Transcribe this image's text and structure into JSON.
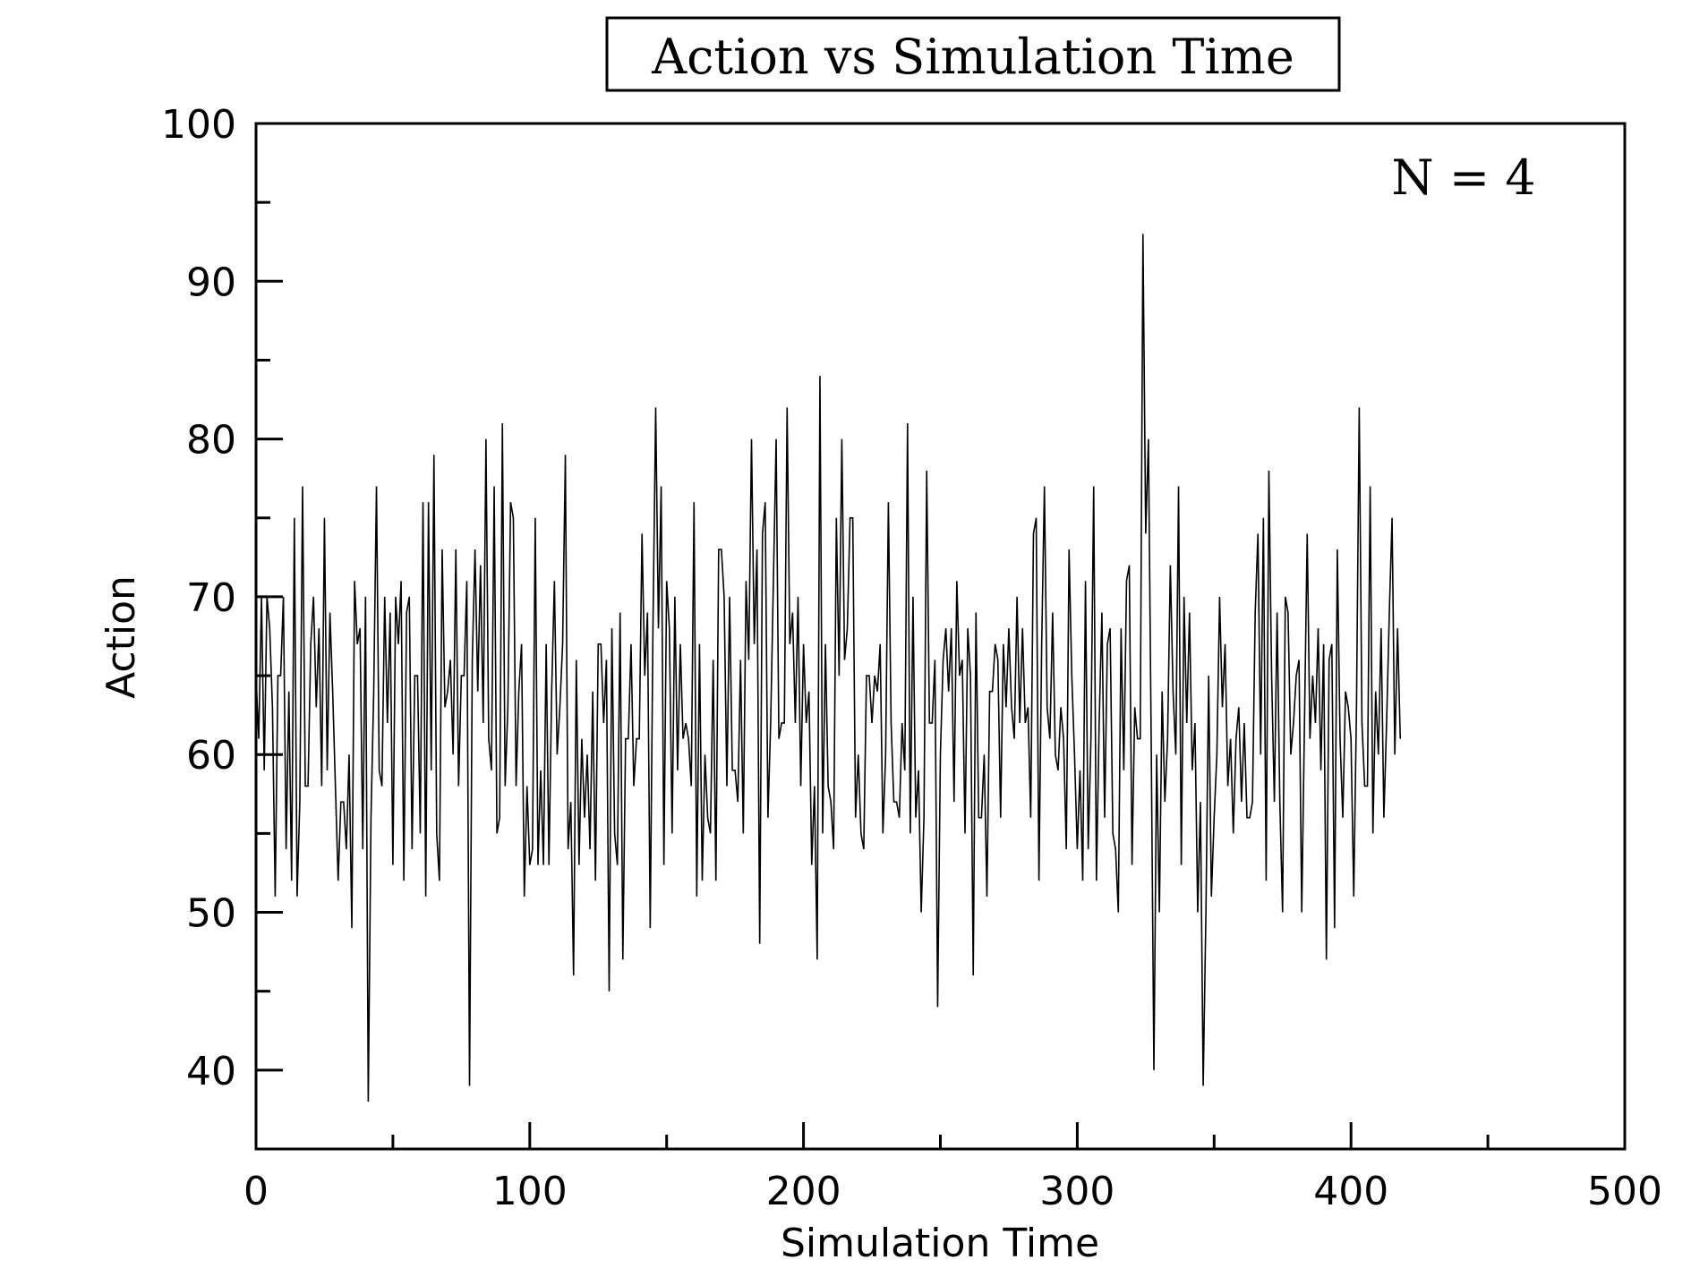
{
  "chart_data": {
    "type": "line",
    "title": "Action vs Simulation Time",
    "xlabel": "Simulation Time",
    "ylabel": "Action",
    "annotation": "N = 4",
    "xlim": [
      0,
      500
    ],
    "ylim": [
      35,
      100
    ],
    "xticks": [
      0,
      100,
      200,
      300,
      400,
      500
    ],
    "xtick_labels": [
      "0",
      "100",
      "200",
      "300",
      "400",
      "500"
    ],
    "yticks": [
      40,
      50,
      60,
      70,
      80,
      90,
      100
    ],
    "ytick_labels": [
      "40",
      "50",
      "60",
      "70",
      "80",
      "90",
      "100"
    ],
    "grid": false,
    "line_color": "#000000",
    "x_step": 1,
    "series": [
      {
        "values": [
          65,
          61,
          70,
          59,
          70,
          68,
          63,
          51,
          65,
          65,
          70,
          54,
          64,
          52,
          75,
          51,
          57,
          77,
          58,
          58,
          67,
          70,
          63,
          68,
          58,
          75,
          59,
          69,
          64,
          58,
          52,
          57,
          57,
          54,
          60,
          49,
          71,
          67,
          68,
          54,
          70,
          38,
          56,
          64,
          77,
          59,
          58,
          70,
          62,
          69,
          53,
          70,
          67,
          71,
          52,
          69,
          70,
          54,
          65,
          65,
          55,
          76,
          51,
          76,
          59,
          79,
          55,
          52,
          73,
          63,
          64,
          66,
          60,
          73,
          58,
          65,
          65,
          71,
          39,
          66,
          73,
          64,
          72,
          62,
          80,
          61,
          59,
          77,
          55,
          56,
          81,
          58,
          63,
          76,
          75,
          58,
          64,
          67,
          51,
          58,
          53,
          54,
          75,
          53,
          59,
          53,
          67,
          53,
          64,
          71,
          60,
          63,
          67,
          79,
          54,
          57,
          46,
          66,
          53,
          61,
          56,
          60,
          54,
          64,
          52,
          67,
          67,
          62,
          66,
          45,
          68,
          55,
          53,
          69,
          47,
          61,
          61,
          67,
          58,
          61,
          61,
          74,
          65,
          69,
          49,
          68,
          82,
          68,
          77,
          53,
          71,
          68,
          55,
          70,
          59,
          67,
          61,
          62,
          61,
          58,
          76,
          51,
          67,
          52,
          60,
          56,
          55,
          66,
          52,
          73,
          73,
          70,
          58,
          70,
          59,
          59,
          57,
          66,
          55,
          71,
          66,
          80,
          67,
          73,
          48,
          74,
          76,
          56,
          62,
          71,
          80,
          61,
          62,
          62,
          82,
          67,
          69,
          62,
          70,
          58,
          67,
          62,
          64,
          53,
          58,
          47,
          84,
          55,
          67,
          58,
          57,
          54,
          75,
          65,
          80,
          66,
          68,
          75,
          75,
          56,
          60,
          55,
          54,
          65,
          65,
          62,
          65,
          64,
          67,
          55,
          60,
          76,
          62,
          57,
          57,
          56,
          62,
          59,
          81,
          55,
          70,
          56,
          59,
          50,
          56,
          78,
          62,
          62,
          66,
          44,
          60,
          66,
          68,
          64,
          68,
          57,
          71,
          65,
          66,
          55,
          68,
          65,
          46,
          69,
          56,
          56,
          60,
          51,
          64,
          64,
          67,
          66,
          56,
          67,
          63,
          68,
          63,
          61,
          70,
          62,
          68,
          62,
          63,
          56,
          74,
          75,
          52,
          67,
          77,
          63,
          61,
          69,
          60,
          59,
          63,
          61,
          54,
          73,
          65,
          60,
          54,
          59,
          52,
          71,
          54,
          61,
          77,
          52,
          62,
          69,
          56,
          67,
          68,
          55,
          54,
          50,
          68,
          59,
          71,
          72,
          53,
          63,
          61,
          61,
          93,
          74,
          80,
          61,
          40,
          60,
          50,
          64,
          57,
          61,
          72,
          64,
          60,
          77,
          53,
          70,
          62,
          69,
          59,
          62,
          50,
          57,
          39,
          50,
          65,
          51,
          56,
          60,
          70,
          63,
          67,
          58,
          61,
          55,
          61,
          63,
          57,
          62,
          56,
          56,
          57,
          69,
          74,
          60,
          75,
          52,
          78,
          65,
          57,
          69,
          57,
          50,
          70,
          69,
          60,
          62,
          65,
          66,
          50,
          62,
          74,
          61,
          65,
          62,
          68,
          59,
          67,
          47,
          66,
          67,
          49,
          73,
          61,
          56,
          64,
          63,
          61,
          51,
          63,
          82,
          62,
          58,
          58,
          77,
          55,
          64,
          60,
          68,
          56,
          62,
          69,
          75,
          60,
          68,
          61
        ]
      }
    ]
  }
}
